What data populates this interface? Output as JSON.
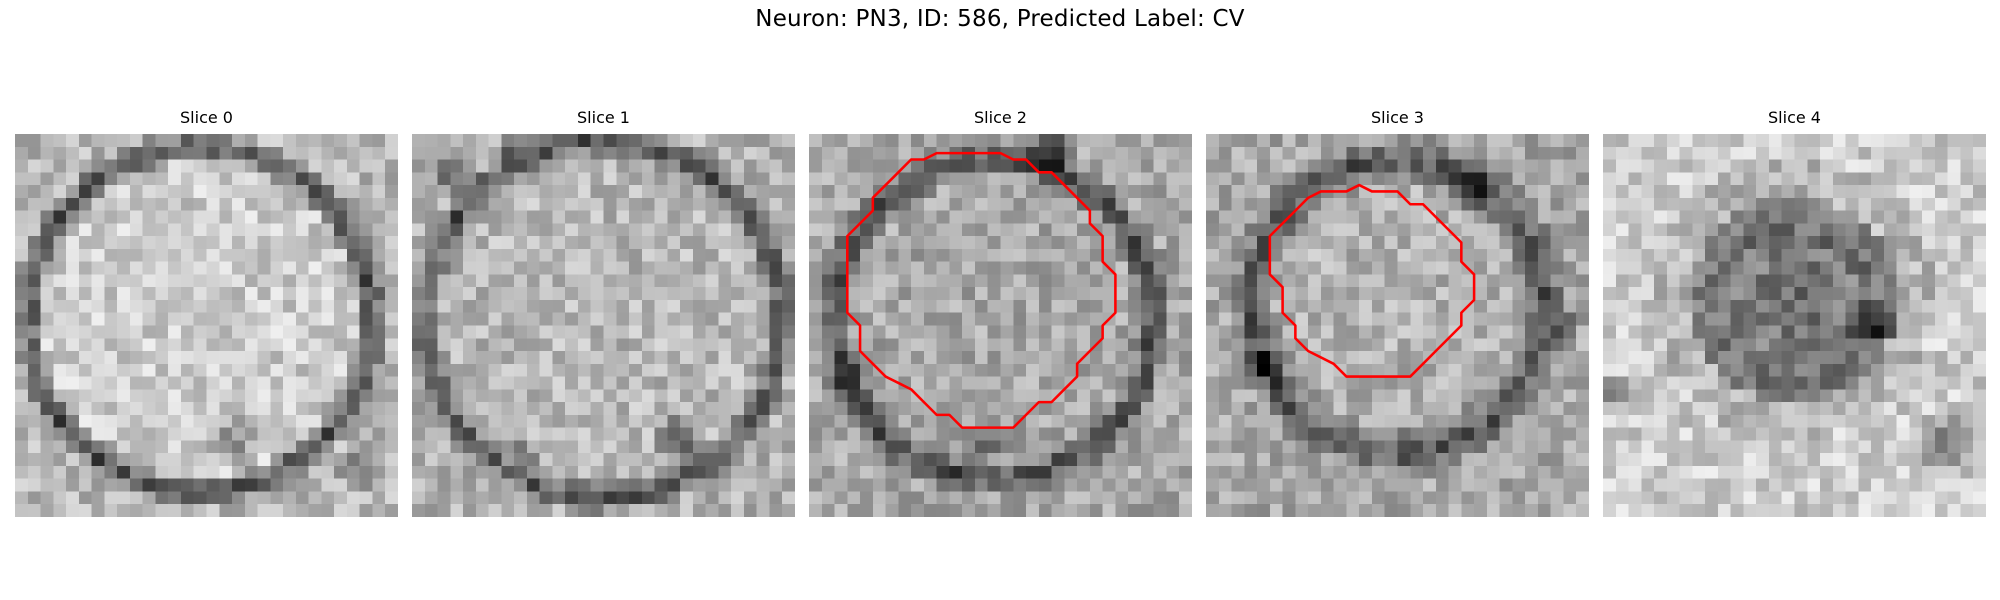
{
  "figure": {
    "title": "Neuron: PN3, ID: 586, Predicted Label: CV"
  },
  "panels": [
    {
      "title": "Slice 0",
      "contour": false
    },
    {
      "title": "Slice 1",
      "contour": false
    },
    {
      "title": "Slice 2",
      "contour": true
    },
    {
      "title": "Slice 3",
      "contour": true
    },
    {
      "title": "Slice 4",
      "contour": false
    }
  ],
  "colors": {
    "contour": "#ff0000",
    "background": "#ffffff"
  }
}
